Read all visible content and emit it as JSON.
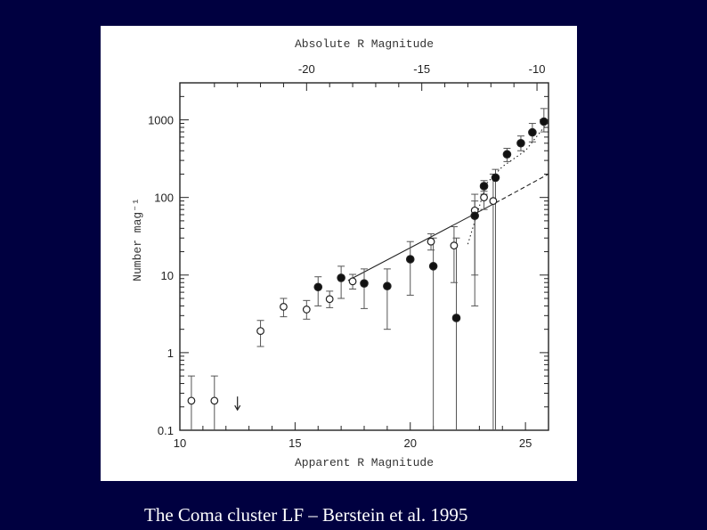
{
  "caption": "The Coma cluster LF – Berstein et al. 1995",
  "colors": {
    "background": "#000040",
    "panel": "#ffffff",
    "ink": "#222222",
    "caption": "#ffffff"
  },
  "chart_data": {
    "type": "scatter",
    "xlabel": "Apparent R Magnitude",
    "x2label": "Absolute R Magnitude",
    "ylabel": "Number mag⁻¹",
    "xlim": [
      10,
      26
    ],
    "ylim": [
      0.1,
      3000
    ],
    "yscale": "log",
    "x_ticks": [
      10,
      15,
      20,
      25
    ],
    "x_tick_labels": [
      "10",
      "15",
      "20",
      "25"
    ],
    "x2_ticks": [
      -20,
      -15,
      -10
    ],
    "x2_tick_labels": [
      "-20",
      "-15",
      "-10"
    ],
    "x2_offset": -35.5,
    "y_ticks": [
      0.1,
      1,
      10,
      100,
      1000
    ],
    "y_tick_labels": [
      "0.1",
      "1",
      "10",
      "100",
      "1000"
    ],
    "series": [
      {
        "marker": "open-circle",
        "points": [
          {
            "x": 10.5,
            "y": 0.24,
            "lo": 0.1,
            "hi": 0.5
          },
          {
            "x": 11.5,
            "y": 0.24,
            "lo": 0.1,
            "hi": 0.5
          },
          {
            "x": 13.5,
            "y": 1.9,
            "lo": 1.2,
            "hi": 2.6
          },
          {
            "x": 14.5,
            "y": 3.9,
            "lo": 2.9,
            "hi": 5.0
          },
          {
            "x": 15.5,
            "y": 3.6,
            "lo": 2.7,
            "hi": 4.7
          },
          {
            "x": 16.5,
            "y": 4.9,
            "lo": 3.8,
            "hi": 6.2
          },
          {
            "x": 17.5,
            "y": 8.3,
            "lo": 6.6,
            "hi": 10.2
          },
          {
            "x": 20.9,
            "y": 27,
            "lo": 21,
            "hi": 34
          },
          {
            "x": 21.9,
            "y": 24,
            "lo": 8,
            "hi": 42
          },
          {
            "x": 22.8,
            "y": 68,
            "lo": 4,
            "hi": 110
          },
          {
            "x": 23.2,
            "y": 100,
            "lo": 70,
            "hi": 120
          },
          {
            "x": 23.6,
            "y": 90,
            "lo": 0.1,
            "hi": 200
          }
        ]
      },
      {
        "marker": "filled-circle",
        "points": [
          {
            "x": 16.0,
            "y": 7,
            "lo": 4,
            "hi": 9.5
          },
          {
            "x": 17.0,
            "y": 9.2,
            "lo": 5,
            "hi": 13
          },
          {
            "x": 18.0,
            "y": 7.8,
            "lo": 3.7,
            "hi": 12
          },
          {
            "x": 19.0,
            "y": 7.2,
            "lo": 2,
            "hi": 12
          },
          {
            "x": 20.0,
            "y": 16,
            "lo": 5.5,
            "hi": 27
          },
          {
            "x": 21.0,
            "y": 13,
            "lo": 0.1,
            "hi": 30
          },
          {
            "x": 22.0,
            "y": 2.8,
            "lo": 0.1,
            "hi": 30
          },
          {
            "x": 22.8,
            "y": 58,
            "lo": 10,
            "hi": 90
          },
          {
            "x": 23.2,
            "y": 140,
            "lo": 110,
            "hi": 165
          },
          {
            "x": 23.7,
            "y": 180,
            "lo": 0.1,
            "hi": 230
          },
          {
            "x": 24.2,
            "y": 360,
            "lo": 290,
            "hi": 430
          },
          {
            "x": 24.8,
            "y": 500,
            "lo": 400,
            "hi": 620
          },
          {
            "x": 25.3,
            "y": 690,
            "lo": 520,
            "hi": 900
          },
          {
            "x": 25.8,
            "y": 950,
            "lo": 700,
            "hi": 1400
          }
        ]
      }
    ],
    "fit_lines": [
      {
        "style": "solid",
        "points": [
          [
            17.3,
            8.5
          ],
          [
            23.7,
            85
          ]
        ]
      },
      {
        "style": "dashed",
        "points": [
          [
            23.7,
            85
          ],
          [
            26,
            200
          ]
        ]
      },
      {
        "style": "dotted",
        "points": [
          [
            22.5,
            25
          ],
          [
            23.3,
            150
          ],
          [
            24,
            250
          ],
          [
            25,
            400
          ],
          [
            26,
            950
          ]
        ]
      }
    ],
    "upper_limit": {
      "x": 12.5,
      "y": 0.22
    }
  }
}
